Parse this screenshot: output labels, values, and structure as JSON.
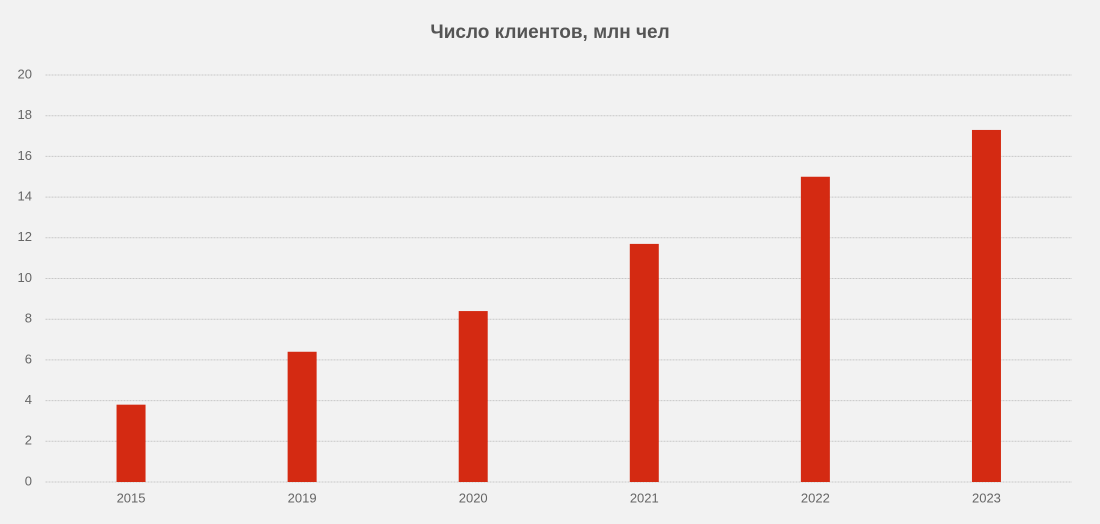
{
  "chart_data": {
    "type": "bar",
    "title": "Число клиентов, млн чел",
    "categories": [
      "2015",
      "2019",
      "2020",
      "2021",
      "2022",
      "2023"
    ],
    "values": [
      3.8,
      6.4,
      8.4,
      11.7,
      15.0,
      17.3
    ],
    "color": "#d42a12",
    "ylim": [
      0,
      20
    ],
    "yticks": [
      0,
      2,
      4,
      6,
      8,
      10,
      12,
      14,
      16,
      18,
      20
    ],
    "grid": true
  }
}
